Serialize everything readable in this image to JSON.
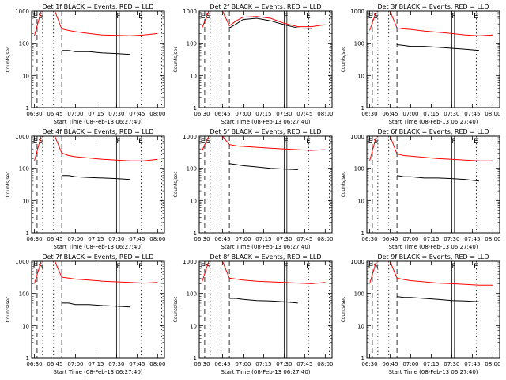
{
  "colors": {
    "events": "#000000",
    "lld": "#ff0000",
    "background": "#ffffff"
  },
  "common": {
    "xlabel": "Start Time (08-Feb-13 06:27:40)",
    "ylabel": "Counts/sec",
    "x_ticks": [
      "06:30",
      "06:45",
      "07:00",
      "07:15",
      "07:30",
      "07:45",
      "08:00"
    ],
    "y_ticks": [
      "1",
      "10",
      "100",
      "1000"
    ],
    "markers": [
      "E",
      "S",
      "F",
      "E"
    ]
  },
  "chart_data": [
    {
      "type": "line",
      "title": "Det 1f BLACK = Events, RED = LLD",
      "xlabel": "Start Time (08-Feb-13 06:27:40)",
      "ylabel": "Counts/sec",
      "yscale": "log",
      "ylim": [
        1,
        1000
      ],
      "xlim": [
        "06:28",
        "08:05"
      ],
      "x": [
        "06:30",
        "06:35",
        "06:40",
        "06:45",
        "06:50",
        "06:55",
        "07:00",
        "07:10",
        "07:20",
        "07:30",
        "07:40",
        "07:50",
        "08:00"
      ],
      "series": [
        {
          "name": "RED = LLD",
          "values": [
            170,
            1000,
            1000,
            1000,
            280,
            250,
            230,
            200,
            180,
            175,
            170,
            180,
            200
          ]
        },
        {
          "name": "BLACK = Events",
          "values": [
            null,
            null,
            null,
            null,
            60,
            60,
            55,
            55,
            50,
            48,
            45,
            null,
            null
          ]
        }
      ]
    },
    {
      "type": "line",
      "title": "Det 2f BLACK = Events, RED = LLD",
      "xlabel": "Start Time (08-Feb-13 06:27:40)",
      "ylabel": "Counts/sec",
      "yscale": "log",
      "ylim": [
        1,
        1000
      ],
      "xlim": [
        "06:28",
        "08:05"
      ],
      "x": [
        "06:30",
        "06:35",
        "06:40",
        "06:45",
        "06:50",
        "06:55",
        "07:00",
        "07:10",
        "07:20",
        "07:30",
        "07:40",
        "07:50",
        "08:00"
      ],
      "series": [
        {
          "name": "RED = LLD",
          "values": [
            300,
            1000,
            1000,
            1000,
            350,
            500,
            650,
            680,
            600,
            420,
            330,
            330,
            380
          ]
        },
        {
          "name": "BLACK = Events",
          "values": [
            null,
            null,
            null,
            null,
            300,
            400,
            550,
            600,
            500,
            380,
            300,
            290,
            null
          ]
        }
      ]
    },
    {
      "type": "line",
      "title": "Det 3f BLACK = Events, RED = LLD",
      "xlabel": "Start Time (08-Feb-13 06:27:40)",
      "ylabel": "Counts/sec",
      "yscale": "log",
      "ylim": [
        1,
        1000
      ],
      "xlim": [
        "06:28",
        "08:05"
      ],
      "x": [
        "06:30",
        "06:35",
        "06:40",
        "06:45",
        "06:50",
        "06:55",
        "07:00",
        "07:10",
        "07:20",
        "07:30",
        "07:40",
        "07:50",
        "08:00"
      ],
      "series": [
        {
          "name": "RED = LLD",
          "values": [
            250,
            1000,
            1000,
            1000,
            300,
            280,
            270,
            240,
            220,
            200,
            180,
            170,
            180
          ]
        },
        {
          "name": "BLACK = Events",
          "values": [
            null,
            null,
            null,
            null,
            90,
            85,
            80,
            80,
            75,
            70,
            65,
            60,
            null
          ]
        }
      ]
    },
    {
      "type": "line",
      "title": "Det 4f BLACK = Events, RED = LLD",
      "xlabel": "Start Time (08-Feb-13 06:27:40)",
      "ylabel": "Counts/sec",
      "yscale": "log",
      "ylim": [
        1,
        1000
      ],
      "xlim": [
        "06:28",
        "08:05"
      ],
      "x": [
        "06:30",
        "06:35",
        "06:40",
        "06:45",
        "06:50",
        "06:55",
        "07:00",
        "07:10",
        "07:20",
        "07:30",
        "07:40",
        "07:50",
        "08:00"
      ],
      "series": [
        {
          "name": "RED = LLD",
          "values": [
            170,
            1000,
            1000,
            1000,
            300,
            250,
            230,
            210,
            190,
            180,
            170,
            170,
            190
          ]
        },
        {
          "name": "BLACK = Events",
          "values": [
            null,
            null,
            null,
            null,
            60,
            60,
            55,
            52,
            50,
            48,
            45,
            null,
            null
          ]
        }
      ]
    },
    {
      "type": "line",
      "title": "Det 5f BLACK = Events, RED = LLD",
      "xlabel": "Start Time (08-Feb-13 06:27:40)",
      "ylabel": "Counts/sec",
      "yscale": "log",
      "ylim": [
        1,
        1000
      ],
      "xlim": [
        "06:28",
        "08:05"
      ],
      "x": [
        "06:30",
        "06:35",
        "06:40",
        "06:45",
        "06:50",
        "06:55",
        "07:00",
        "07:10",
        "07:20",
        "07:30",
        "07:40",
        "07:50",
        "08:00"
      ],
      "series": [
        {
          "name": "RED = LLD",
          "values": [
            350,
            1000,
            1000,
            1000,
            550,
            500,
            480,
            450,
            420,
            400,
            380,
            360,
            380
          ]
        },
        {
          "name": "BLACK = Events",
          "values": [
            null,
            null,
            null,
            null,
            140,
            130,
            120,
            110,
            100,
            95,
            90,
            null,
            null
          ]
        }
      ]
    },
    {
      "type": "line",
      "title": "Det 6f BLACK = Events, RED = LLD",
      "xlabel": "Start Time (08-Feb-13 06:27:40)",
      "ylabel": "Counts/sec",
      "yscale": "log",
      "ylim": [
        1,
        1000
      ],
      "xlim": [
        "06:28",
        "08:05"
      ],
      "x": [
        "06:30",
        "06:35",
        "06:40",
        "06:45",
        "06:50",
        "06:55",
        "07:00",
        "07:10",
        "07:20",
        "07:30",
        "07:40",
        "07:50",
        "08:00"
      ],
      "series": [
        {
          "name": "RED = LLD",
          "values": [
            170,
            1000,
            1000,
            1000,
            280,
            250,
            240,
            220,
            200,
            190,
            180,
            170,
            170
          ]
        },
        {
          "name": "BLACK = Events",
          "values": [
            null,
            null,
            null,
            null,
            60,
            55,
            55,
            50,
            50,
            48,
            45,
            40,
            null
          ]
        }
      ]
    },
    {
      "type": "line",
      "title": "Det 7f BLACK = Events, RED = LLD",
      "xlabel": "Start Time (08-Feb-13 06:27:40)",
      "ylabel": "Counts/sec",
      "yscale": "log",
      "ylim": [
        1,
        1000
      ],
      "xlim": [
        "06:28",
        "08:05"
      ],
      "x": [
        "06:30",
        "06:35",
        "06:40",
        "06:45",
        "06:50",
        "06:55",
        "07:00",
        "07:10",
        "07:20",
        "07:30",
        "07:40",
        "07:50",
        "08:00"
      ],
      "series": [
        {
          "name": "RED = LLD",
          "values": [
            200,
            1000,
            1000,
            1000,
            320,
            300,
            280,
            260,
            240,
            230,
            220,
            210,
            220
          ]
        },
        {
          "name": "BLACK = Events",
          "values": [
            null,
            null,
            null,
            null,
            50,
            50,
            45,
            45,
            42,
            40,
            38,
            null,
            null
          ]
        }
      ]
    },
    {
      "type": "line",
      "title": "Det 8f BLACK = Events, RED = LLD",
      "xlabel": "Start Time (08-Feb-13 06:27:40)",
      "ylabel": "Counts/sec",
      "yscale": "log",
      "ylim": [
        1,
        1000
      ],
      "xlim": [
        "06:28",
        "08:05"
      ],
      "x": [
        "06:30",
        "06:35",
        "06:40",
        "06:45",
        "06:50",
        "06:55",
        "07:00",
        "07:10",
        "07:20",
        "07:30",
        "07:40",
        "07:50",
        "08:00"
      ],
      "series": [
        {
          "name": "RED = LLD",
          "values": [
            230,
            1000,
            1000,
            1000,
            300,
            280,
            260,
            240,
            230,
            220,
            210,
            200,
            220
          ]
        },
        {
          "name": "BLACK = Events",
          "values": [
            null,
            null,
            null,
            null,
            70,
            70,
            65,
            60,
            58,
            55,
            50,
            null,
            null
          ]
        }
      ]
    },
    {
      "type": "line",
      "title": "Det 9f BLACK = Events, RED = LLD",
      "xlabel": "Start Time (08-Feb-13 06:27:40)",
      "ylabel": "Counts/sec",
      "yscale": "log",
      "ylim": [
        1,
        1000
      ],
      "xlim": [
        "06:28",
        "08:05"
      ],
      "x": [
        "06:30",
        "06:35",
        "06:40",
        "06:45",
        "06:50",
        "06:55",
        "07:00",
        "07:10",
        "07:20",
        "07:30",
        "07:40",
        "07:50",
        "08:00"
      ],
      "series": [
        {
          "name": "RED = LLD",
          "values": [
            200,
            1000,
            1000,
            1000,
            300,
            270,
            250,
            230,
            210,
            200,
            190,
            180,
            180
          ]
        },
        {
          "name": "BLACK = Events",
          "values": [
            null,
            null,
            null,
            null,
            80,
            75,
            75,
            70,
            65,
            60,
            58,
            55,
            null
          ]
        }
      ]
    }
  ]
}
